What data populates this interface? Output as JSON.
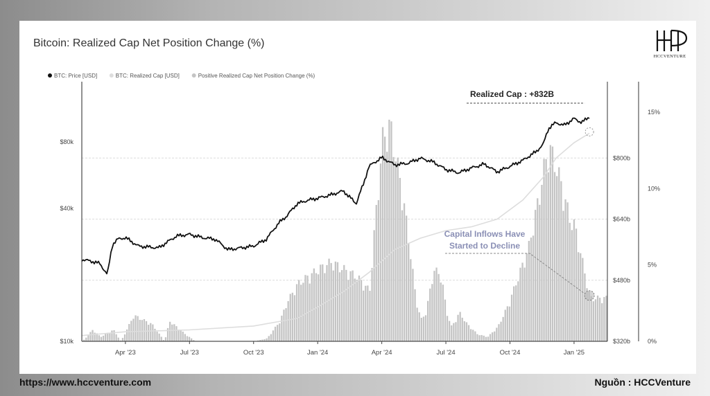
{
  "chart_data": {
    "type": "line",
    "title": "Bitcoin: Realized Cap Net Position Change (%)",
    "legend": [
      {
        "label": "BTC: Price [USD]",
        "color": "#111111"
      },
      {
        "label": "BTC: Realized Cap [USD]",
        "color": "#dddddd"
      },
      {
        "label": "Positive Realized Cap Net Position Change (%)",
        "color": "#c4c4c4"
      }
    ],
    "legend_position": "top-left",
    "grid": true,
    "x_ticks": [
      "Apr '23",
      "Jul '23",
      "Oct '23",
      "Jan '24",
      "Apr '24",
      "Jul '24",
      "Oct '24",
      "Jan '25"
    ],
    "x_tick_positions": [
      2023.25,
      2023.5,
      2023.75,
      2024.0,
      2024.25,
      2024.5,
      2024.75,
      2025.0
    ],
    "xlim": [
      2023.08,
      2025.13
    ],
    "y_left": {
      "scale": "log",
      "ticks": [
        "$10k",
        "$40k",
        "$80k"
      ],
      "tick_values": [
        10000,
        40000,
        80000
      ],
      "range": [
        10000,
        150000
      ]
    },
    "y_mid": {
      "scale": "linear",
      "ticks": [
        "$320b",
        "$480b",
        "$640b",
        "$800b"
      ],
      "tick_values": [
        320,
        480,
        640,
        800
      ],
      "range": [
        320,
        1000
      ]
    },
    "y_right": {
      "scale": "linear",
      "ticks": [
        "0%",
        "5%",
        "10%",
        "15%"
      ],
      "tick_values": [
        0,
        5,
        10,
        15
      ],
      "range": [
        0,
        17
      ]
    },
    "series": [
      {
        "name": "BTC: Price [USD]",
        "axis": "left",
        "color": "#111111",
        "x": [
          2023.08,
          2023.12,
          2023.15,
          2023.18,
          2023.2,
          2023.22,
          2023.25,
          2023.3,
          2023.38,
          2023.45,
          2023.5,
          2023.55,
          2023.6,
          2023.65,
          2023.7,
          2023.75,
          2023.8,
          2023.85,
          2023.88,
          2023.92,
          2023.96,
          2024.0,
          2024.05,
          2024.1,
          2024.15,
          2024.18,
          2024.2,
          2024.25,
          2024.3,
          2024.35,
          2024.4,
          2024.45,
          2024.5,
          2024.55,
          2024.6,
          2024.65,
          2024.7,
          2024.75,
          2024.8,
          2024.85,
          2024.88,
          2024.9,
          2024.93,
          2024.96,
          2025.0,
          2025.03,
          2025.06
        ],
        "y": [
          23500,
          23000,
          22500,
          20000,
          27500,
          29000,
          29500,
          27000,
          26500,
          30000,
          30500,
          29500,
          29000,
          26000,
          26500,
          27000,
          29000,
          34500,
          37000,
          42000,
          43500,
          44500,
          46000,
          48000,
          42000,
          52000,
          62000,
          68000,
          63000,
          64000,
          67500,
          65000,
          60000,
          58000,
          61000,
          63500,
          58500,
          62000,
          66000,
          72000,
          78000,
          92000,
          98000,
          95000,
          102000,
          98000,
          104000
        ]
      },
      {
        "name": "BTC: Realized Cap [USD]",
        "axis": "mid",
        "color": "#dddddd",
        "x": [
          2023.08,
          2023.25,
          2023.5,
          2023.75,
          2023.92,
          2024.0,
          2024.1,
          2024.2,
          2024.3,
          2024.4,
          2024.5,
          2024.6,
          2024.7,
          2024.8,
          2024.88,
          2024.93,
          2025.0,
          2025.06
        ],
        "y": [
          335,
          345,
          350,
          360,
          380,
          410,
          450,
          500,
          560,
          590,
          610,
          620,
          640,
          690,
          750,
          800,
          840,
          865
        ]
      },
      {
        "name": "Positive Realized Cap Net Position Change (%)",
        "axis": "right",
        "color": "#c4c4c4",
        "x": [
          2023.08,
          2023.12,
          2023.15,
          2023.2,
          2023.23,
          2023.28,
          2023.35,
          2023.4,
          2023.42,
          2023.48,
          2023.52,
          2023.6,
          2023.7,
          2023.75,
          2023.8,
          2023.85,
          2023.88,
          2023.92,
          2023.96,
          2024.0,
          2024.05,
          2024.1,
          2024.15,
          2024.2,
          2024.22,
          2024.25,
          2024.28,
          2024.3,
          2024.33,
          2024.36,
          2024.38,
          2024.4,
          2024.42,
          2024.45,
          2024.48,
          2024.5,
          2024.52,
          2024.55,
          2024.58,
          2024.62,
          2024.66,
          2024.7,
          2024.74,
          2024.78,
          2024.82,
          2024.86,
          2024.88,
          2024.9,
          2024.93,
          2024.96,
          2024.98,
          2025.0,
          2025.03,
          2025.06
        ],
        "y": [
          0,
          0.8,
          0.3,
          0.8,
          0,
          1.8,
          1.2,
          0,
          1.4,
          0.5,
          0,
          0,
          0,
          0,
          0.2,
          1.4,
          2.8,
          4.0,
          4.5,
          5.0,
          5.5,
          5.0,
          4.5,
          3.5,
          8.0,
          14.0,
          15.0,
          13.0,
          10.0,
          6.0,
          3.0,
          1.5,
          2.0,
          5.0,
          4.5,
          2.0,
          1.0,
          2.0,
          1.2,
          0.5,
          0.3,
          1.0,
          2.5,
          4.5,
          6.5,
          10.0,
          12.0,
          13.5,
          12.0,
          10.0,
          8.5,
          8.0,
          5.5,
          3.0
        ]
      }
    ],
    "annotations": {
      "realized_cap_label": "Realized Cap : +832B",
      "inflows_line1": "Capital Inflows Have",
      "inflows_line2": "Started to Decline",
      "inflows_color": "#8a8fb5"
    }
  },
  "branding": {
    "logo_text": "HCCVENTURE",
    "website": "https://www.hccventure.com",
    "source": "Nguồn : HCCVenture"
  }
}
